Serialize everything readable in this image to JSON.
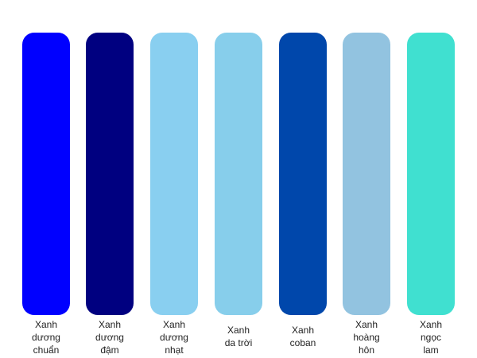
{
  "palette": {
    "swatches": [
      {
        "color": "#0000FF",
        "label_lines": [
          "Xanh",
          "dương",
          "chuẩn"
        ]
      },
      {
        "color": "#000080",
        "label_lines": [
          "Xanh",
          "dương",
          "đậm"
        ]
      },
      {
        "color": "#89CFF0",
        "label_lines": [
          "Xanh",
          "dương",
          "nhạt"
        ]
      },
      {
        "color": "#87CEEB",
        "label_lines": [
          "Xanh",
          "da trời"
        ]
      },
      {
        "color": "#0047AB",
        "label_lines": [
          "Xanh",
          "coban"
        ]
      },
      {
        "color": "#92C3E0",
        "label_lines": [
          "Xanh",
          "hoàng",
          "hôn"
        ]
      },
      {
        "color": "#40E0D0",
        "label_lines": [
          "Xanh",
          "ngọc",
          "lam"
        ]
      }
    ]
  }
}
